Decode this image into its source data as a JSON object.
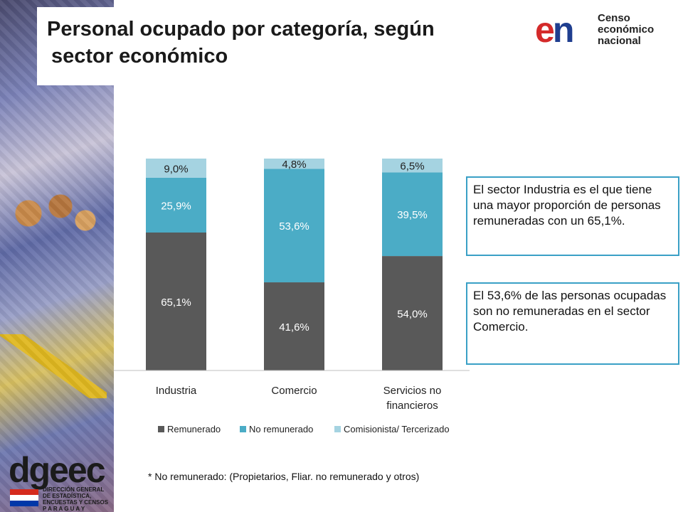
{
  "header": {
    "title_line1": "Personal ocupado por categoría, según",
    "title_line2": "sector económico"
  },
  "logo": {
    "mark_e": "e",
    "mark_n": "n",
    "line1": "Censo",
    "line2": "económico",
    "line3": "nacional"
  },
  "callouts": {
    "industria": "El sector Industria es el que tiene una mayor proporción de personas remuneradas con un 65,1%.",
    "comercio": "El 53,6% de las personas ocupadas son no remuneradas en el sector Comercio."
  },
  "footnote": "* No remunerado: (Propietarios, Fliar. no remunerado y otros)",
  "dgeec": {
    "word": "dgeec",
    "line1": "DIRECCIÓN GENERAL",
    "line2": "DE ESTADÍSTICA,",
    "line3": "ENCUESTAS Y CENSOS",
    "line4": "P A R A G U A Y"
  },
  "colors": {
    "remunerado": "#595959",
    "no_remunerado": "#4bacc6",
    "comisionista": "#a5d3e1",
    "callout_border": "#3aa0c6"
  },
  "chart_data": {
    "type": "bar",
    "stacked": true,
    "categories": [
      "Industria",
      "Comercio",
      "Servicios no financieros"
    ],
    "category_lines": [
      [
        "Industria"
      ],
      [
        "Comercio"
      ],
      [
        "Servicios no",
        "financieros"
      ]
    ],
    "series": [
      {
        "name": "Remunerado",
        "values": [
          65.1,
          41.6,
          54.0
        ],
        "labels": [
          "65,1%",
          "41,6%",
          "54,0%"
        ]
      },
      {
        "name": "No remunerado",
        "values": [
          25.9,
          53.6,
          39.5
        ],
        "labels": [
          "25,9%",
          "53,6%",
          "39,5%"
        ]
      },
      {
        "name": "Comisionista/ Tercerizado",
        "values": [
          9.0,
          4.8,
          6.5
        ],
        "labels": [
          "9,0%",
          "4,8%",
          "6,5%"
        ]
      }
    ],
    "ylim": [
      0,
      100
    ],
    "grid": false,
    "legend": "bottom"
  }
}
